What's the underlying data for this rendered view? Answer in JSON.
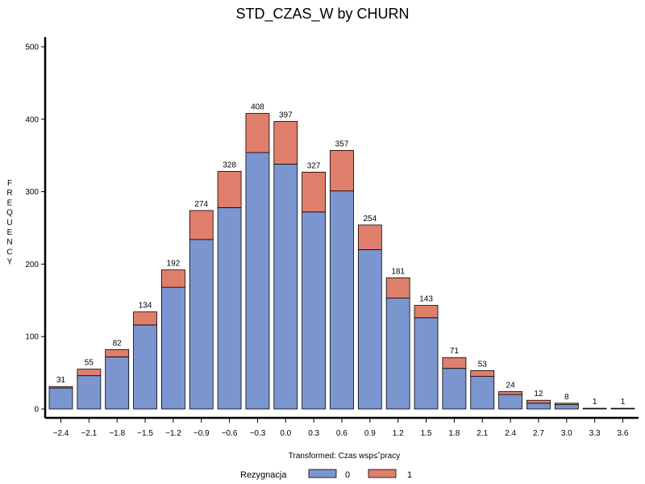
{
  "chart_data": {
    "type": "bar",
    "stacked": true,
    "title": "STD_CZAS_W by CHURN",
    "xlabel": "Transformed: Czas wsp≤ˆpracy",
    "ylabel": "FREQUENCY",
    "ylim": [
      0,
      500
    ],
    "yticks": [
      0,
      100,
      200,
      300,
      400,
      500
    ],
    "grid": false,
    "categories": [
      "−2.4",
      "−2.1",
      "−1.8",
      "−1.5",
      "−1.2",
      "−0.9",
      "−0.6",
      "−0.3",
      "0.0",
      "0.3",
      "0.6",
      "0.9",
      "1.2",
      "1.5",
      "1.8",
      "2.1",
      "2.4",
      "2.7",
      "3.0",
      "3.3",
      "3.6"
    ],
    "series": [
      {
        "name": "0",
        "color": "#7b96cf",
        "values": [
          29,
          46,
          72,
          116,
          168,
          234,
          278,
          354,
          338,
          272,
          301,
          220,
          153,
          126,
          56,
          45,
          20,
          8,
          6,
          1,
          1
        ]
      },
      {
        "name": "1",
        "color": "#e07e6c",
        "values": [
          2,
          9,
          10,
          18,
          24,
          40,
          50,
          54,
          59,
          55,
          56,
          34,
          28,
          17,
          15,
          8,
          4,
          4,
          2,
          0,
          0
        ]
      }
    ],
    "totals": [
      31,
      55,
      82,
      134,
      192,
      274,
      328,
      408,
      397,
      327,
      357,
      254,
      181,
      143,
      71,
      53,
      24,
      12,
      8,
      1,
      1
    ],
    "legend": {
      "title": "Rezygnacja",
      "position": "bottom"
    }
  }
}
